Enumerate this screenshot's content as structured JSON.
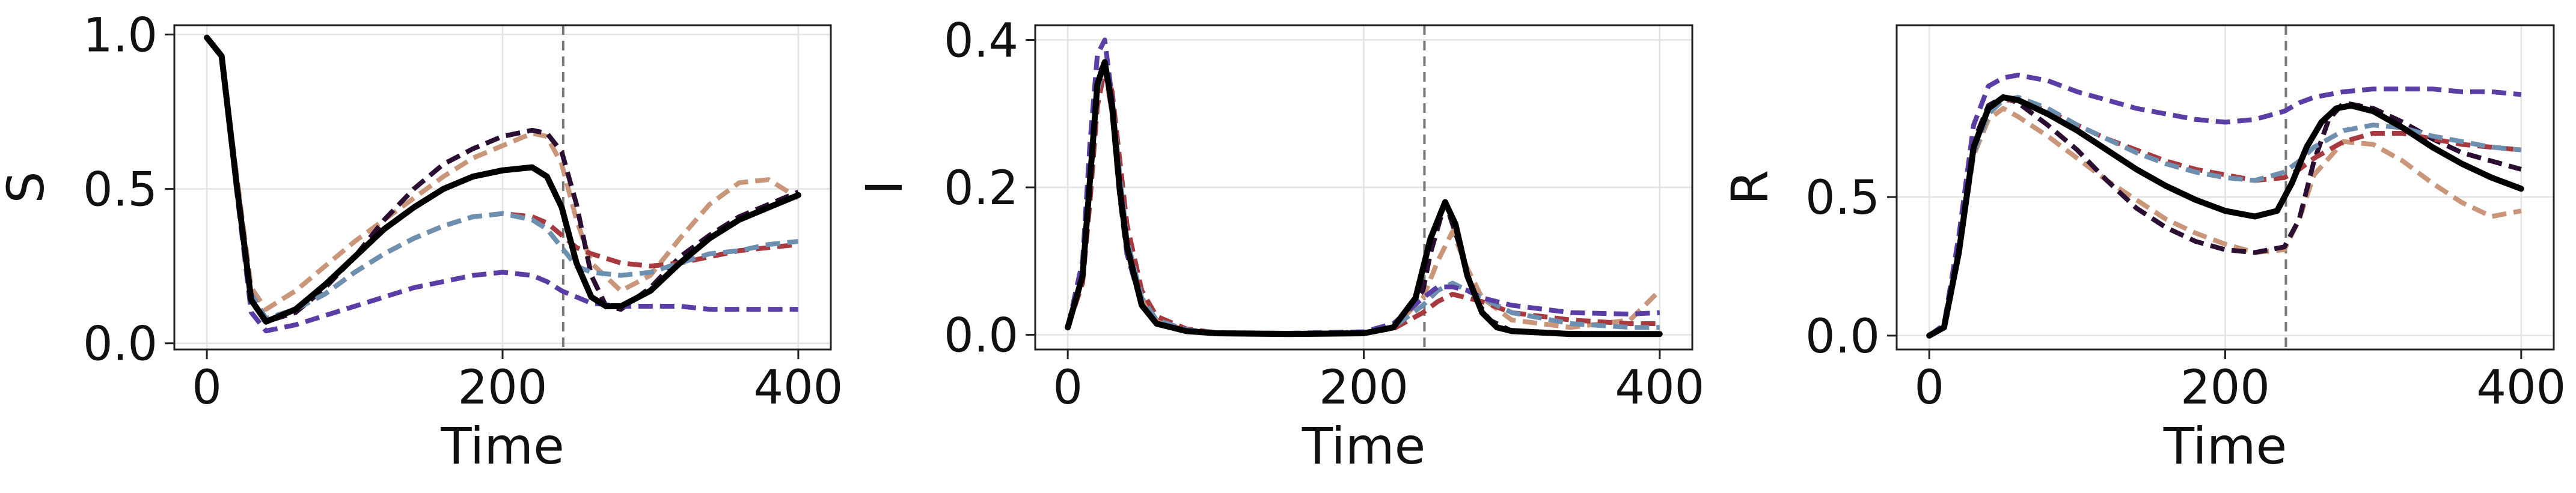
{
  "chart_data": [
    {
      "type": "line",
      "xlabel": "Time",
      "ylabel": "S",
      "xlim": [
        -22,
        422
      ],
      "ylim": [
        -0.02,
        1.03
      ],
      "xticks": [
        0,
        200,
        400
      ],
      "yticks": [
        0.0,
        0.5,
        1.0
      ],
      "ytick_labels": [
        "0.0",
        "0.5",
        "1.0"
      ],
      "vline_x": 241,
      "grid": true,
      "series": [
        {
          "color": "#c9967a",
          "dashed": true,
          "x": [
            0,
            10,
            20,
            30,
            40,
            60,
            80,
            100,
            120,
            140,
            160,
            180,
            200,
            220,
            230,
            240,
            250,
            260,
            280,
            300,
            320,
            340,
            360,
            380,
            400
          ],
          "y": [
            0.99,
            0.93,
            0.55,
            0.18,
            0.11,
            0.17,
            0.25,
            0.33,
            0.4,
            0.47,
            0.54,
            0.6,
            0.64,
            0.68,
            0.67,
            0.58,
            0.4,
            0.26,
            0.17,
            0.22,
            0.34,
            0.45,
            0.52,
            0.53,
            0.47
          ]
        },
        {
          "color": "#2a0f33",
          "dashed": true,
          "x": [
            0,
            10,
            20,
            30,
            40,
            60,
            80,
            100,
            120,
            140,
            160,
            180,
            200,
            220,
            230,
            240,
            250,
            260,
            270,
            280,
            300,
            320,
            340,
            360,
            380,
            400
          ],
          "y": [
            0.99,
            0.93,
            0.52,
            0.14,
            0.07,
            0.1,
            0.18,
            0.28,
            0.4,
            0.5,
            0.58,
            0.63,
            0.67,
            0.69,
            0.68,
            0.62,
            0.45,
            0.22,
            0.12,
            0.11,
            0.18,
            0.28,
            0.35,
            0.41,
            0.45,
            0.49
          ]
        },
        {
          "color": "#a83a3f",
          "dashed": true,
          "x": [
            0,
            10,
            20,
            30,
            40,
            60,
            80,
            100,
            120,
            140,
            160,
            180,
            200,
            220,
            230,
            240,
            250,
            260,
            280,
            300,
            320,
            340,
            360,
            380,
            400
          ],
          "y": [
            0.99,
            0.93,
            0.53,
            0.16,
            0.08,
            0.11,
            0.16,
            0.23,
            0.29,
            0.34,
            0.38,
            0.41,
            0.42,
            0.41,
            0.39,
            0.35,
            0.31,
            0.29,
            0.26,
            0.25,
            0.26,
            0.28,
            0.3,
            0.31,
            0.32
          ]
        },
        {
          "color": "#6d8fb0",
          "dashed": true,
          "x": [
            0,
            10,
            20,
            30,
            40,
            60,
            80,
            100,
            120,
            140,
            160,
            180,
            200,
            220,
            230,
            240,
            250,
            260,
            280,
            300,
            320,
            340,
            360,
            380,
            400
          ],
          "y": [
            0.99,
            0.93,
            0.53,
            0.16,
            0.08,
            0.11,
            0.16,
            0.23,
            0.29,
            0.34,
            0.38,
            0.41,
            0.42,
            0.4,
            0.37,
            0.31,
            0.25,
            0.23,
            0.22,
            0.23,
            0.26,
            0.29,
            0.3,
            0.32,
            0.33
          ]
        },
        {
          "color": "#5a3ea6",
          "dashed": true,
          "x": [
            0,
            10,
            20,
            30,
            40,
            60,
            80,
            100,
            120,
            140,
            160,
            180,
            200,
            220,
            230,
            240,
            250,
            260,
            280,
            300,
            320,
            340,
            360,
            380,
            400
          ],
          "y": [
            0.99,
            0.93,
            0.5,
            0.1,
            0.04,
            0.06,
            0.09,
            0.12,
            0.15,
            0.18,
            0.2,
            0.22,
            0.23,
            0.22,
            0.2,
            0.17,
            0.15,
            0.13,
            0.12,
            0.12,
            0.12,
            0.11,
            0.11,
            0.11,
            0.11
          ]
        },
        {
          "color": "#000000",
          "dashed": false,
          "x": [
            0,
            10,
            20,
            30,
            40,
            60,
            80,
            100,
            120,
            140,
            160,
            180,
            200,
            220,
            230,
            240,
            250,
            260,
            270,
            280,
            300,
            320,
            340,
            360,
            380,
            400
          ],
          "y": [
            0.99,
            0.93,
            0.52,
            0.14,
            0.07,
            0.11,
            0.19,
            0.28,
            0.37,
            0.44,
            0.5,
            0.54,
            0.56,
            0.57,
            0.54,
            0.44,
            0.26,
            0.15,
            0.12,
            0.12,
            0.17,
            0.26,
            0.34,
            0.4,
            0.44,
            0.48
          ]
        }
      ]
    },
    {
      "type": "line",
      "xlabel": "Time",
      "ylabel": "I",
      "xlim": [
        -22,
        422
      ],
      "ylim": [
        -0.02,
        0.42
      ],
      "xticks": [
        0,
        200,
        400
      ],
      "yticks": [
        0.0,
        0.2,
        0.4
      ],
      "ytick_labels": [
        "0.0",
        "0.2",
        "0.4"
      ],
      "vline_x": 241,
      "grid": true,
      "series": [
        {
          "color": "#c9967a",
          "dashed": true,
          "x": [
            0,
            10,
            15,
            20,
            25,
            30,
            35,
            40,
            50,
            60,
            80,
            100,
            150,
            200,
            220,
            240,
            250,
            260,
            270,
            280,
            300,
            340,
            380,
            400
          ],
          "y": [
            0.01,
            0.08,
            0.2,
            0.33,
            0.36,
            0.3,
            0.2,
            0.12,
            0.05,
            0.02,
            0.006,
            0.003,
            0.002,
            0.003,
            0.01,
            0.05,
            0.1,
            0.14,
            0.09,
            0.05,
            0.02,
            0.01,
            0.02,
            0.06
          ]
        },
        {
          "color": "#2a0f33",
          "dashed": true,
          "x": [
            0,
            10,
            15,
            20,
            25,
            30,
            35,
            40,
            50,
            60,
            80,
            100,
            150,
            200,
            220,
            240,
            245,
            255,
            265,
            275,
            285,
            300,
            340,
            380,
            400
          ],
          "y": [
            0.01,
            0.09,
            0.23,
            0.35,
            0.37,
            0.3,
            0.19,
            0.11,
            0.04,
            0.015,
            0.005,
            0.002,
            0.001,
            0.002,
            0.01,
            0.06,
            0.11,
            0.18,
            0.12,
            0.05,
            0.02,
            0.005,
            0.002,
            0.001,
            0.001
          ]
        },
        {
          "color": "#a83a3f",
          "dashed": true,
          "x": [
            0,
            10,
            15,
            20,
            25,
            30,
            35,
            40,
            50,
            60,
            80,
            100,
            150,
            200,
            220,
            240,
            250,
            260,
            270,
            280,
            300,
            340,
            380,
            400
          ],
          "y": [
            0.01,
            0.07,
            0.18,
            0.31,
            0.36,
            0.33,
            0.24,
            0.15,
            0.06,
            0.025,
            0.008,
            0.003,
            0.002,
            0.003,
            0.008,
            0.03,
            0.045,
            0.055,
            0.05,
            0.045,
            0.03,
            0.02,
            0.015,
            0.015
          ]
        },
        {
          "color": "#6d8fb0",
          "dashed": true,
          "x": [
            0,
            10,
            15,
            20,
            25,
            30,
            35,
            40,
            50,
            60,
            80,
            100,
            150,
            200,
            220,
            240,
            250,
            260,
            270,
            280,
            300,
            340,
            380,
            400
          ],
          "y": [
            0.01,
            0.08,
            0.2,
            0.33,
            0.37,
            0.32,
            0.22,
            0.13,
            0.05,
            0.02,
            0.007,
            0.003,
            0.002,
            0.003,
            0.01,
            0.04,
            0.06,
            0.07,
            0.06,
            0.05,
            0.03,
            0.015,
            0.01,
            0.01
          ]
        },
        {
          "color": "#5a3ea6",
          "dashed": true,
          "x": [
            0,
            10,
            15,
            20,
            25,
            30,
            35,
            40,
            50,
            60,
            80,
            100,
            150,
            200,
            220,
            240,
            250,
            260,
            270,
            280,
            300,
            340,
            380,
            400
          ],
          "y": [
            0.01,
            0.1,
            0.26,
            0.38,
            0.4,
            0.32,
            0.2,
            0.11,
            0.04,
            0.015,
            0.005,
            0.002,
            0.002,
            0.004,
            0.015,
            0.05,
            0.065,
            0.065,
            0.06,
            0.05,
            0.04,
            0.03,
            0.028,
            0.03
          ]
        },
        {
          "color": "#000000",
          "dashed": false,
          "x": [
            0,
            10,
            15,
            20,
            25,
            30,
            35,
            40,
            50,
            60,
            80,
            100,
            150,
            200,
            220,
            235,
            245,
            255,
            262,
            270,
            280,
            290,
            300,
            340,
            380,
            400
          ],
          "y": [
            0.01,
            0.08,
            0.21,
            0.34,
            0.37,
            0.31,
            0.2,
            0.12,
            0.04,
            0.015,
            0.005,
            0.002,
            0.001,
            0.002,
            0.01,
            0.05,
            0.13,
            0.18,
            0.15,
            0.08,
            0.03,
            0.01,
            0.005,
            0.001,
            0.001,
            0.001
          ]
        }
      ]
    },
    {
      "type": "line",
      "xlabel": "Time",
      "ylabel": "R",
      "xlim": [
        -22,
        422
      ],
      "ylim": [
        -0.05,
        1.12
      ],
      "xticks": [
        0,
        200,
        400
      ],
      "yticks": [
        0.0,
        0.5
      ],
      "ytick_labels": [
        "0.0",
        "0.5"
      ],
      "vline_x": 241,
      "grid": true,
      "series": [
        {
          "color": "#c9967a",
          "dashed": true,
          "x": [
            0,
            10,
            20,
            30,
            40,
            50,
            60,
            80,
            100,
            120,
            140,
            160,
            180,
            200,
            220,
            240,
            250,
            260,
            280,
            300,
            320,
            340,
            360,
            380,
            400
          ],
          "y": [
            0.0,
            0.03,
            0.3,
            0.65,
            0.78,
            0.82,
            0.79,
            0.72,
            0.64,
            0.56,
            0.49,
            0.42,
            0.37,
            0.33,
            0.3,
            0.31,
            0.42,
            0.58,
            0.7,
            0.69,
            0.63,
            0.55,
            0.48,
            0.43,
            0.45
          ]
        },
        {
          "color": "#2a0f33",
          "dashed": true,
          "x": [
            0,
            10,
            20,
            30,
            40,
            50,
            60,
            80,
            100,
            120,
            140,
            160,
            180,
            200,
            220,
            240,
            250,
            260,
            270,
            280,
            300,
            320,
            340,
            360,
            380,
            400
          ],
          "y": [
            0.0,
            0.03,
            0.32,
            0.7,
            0.83,
            0.86,
            0.84,
            0.76,
            0.67,
            0.56,
            0.46,
            0.39,
            0.34,
            0.31,
            0.3,
            0.32,
            0.42,
            0.63,
            0.78,
            0.84,
            0.82,
            0.77,
            0.71,
            0.66,
            0.63,
            0.6
          ]
        },
        {
          "color": "#a83a3f",
          "dashed": true,
          "x": [
            0,
            10,
            20,
            30,
            40,
            50,
            60,
            80,
            100,
            120,
            140,
            160,
            180,
            200,
            220,
            240,
            250,
            260,
            280,
            300,
            320,
            340,
            360,
            380,
            400
          ],
          "y": [
            0.0,
            0.03,
            0.3,
            0.66,
            0.8,
            0.85,
            0.85,
            0.81,
            0.76,
            0.71,
            0.67,
            0.63,
            0.6,
            0.58,
            0.56,
            0.57,
            0.6,
            0.64,
            0.7,
            0.73,
            0.73,
            0.71,
            0.69,
            0.68,
            0.67
          ]
        },
        {
          "color": "#6d8fb0",
          "dashed": true,
          "x": [
            0,
            10,
            20,
            30,
            40,
            50,
            60,
            80,
            100,
            120,
            140,
            160,
            180,
            200,
            220,
            240,
            250,
            260,
            280,
            300,
            320,
            340,
            360,
            380,
            400
          ],
          "y": [
            0.0,
            0.03,
            0.3,
            0.66,
            0.8,
            0.85,
            0.86,
            0.82,
            0.76,
            0.71,
            0.66,
            0.62,
            0.59,
            0.57,
            0.56,
            0.59,
            0.63,
            0.68,
            0.74,
            0.76,
            0.75,
            0.72,
            0.7,
            0.68,
            0.67
          ]
        },
        {
          "color": "#5a3ea6",
          "dashed": true,
          "x": [
            0,
            10,
            20,
            30,
            40,
            50,
            60,
            80,
            100,
            120,
            140,
            160,
            180,
            200,
            220,
            240,
            250,
            260,
            280,
            300,
            320,
            340,
            360,
            380,
            400
          ],
          "y": [
            0.0,
            0.04,
            0.36,
            0.76,
            0.9,
            0.93,
            0.94,
            0.92,
            0.88,
            0.85,
            0.82,
            0.8,
            0.78,
            0.77,
            0.78,
            0.81,
            0.84,
            0.86,
            0.88,
            0.89,
            0.89,
            0.89,
            0.88,
            0.88,
            0.87
          ]
        },
        {
          "color": "#000000",
          "dashed": false,
          "x": [
            0,
            10,
            20,
            30,
            40,
            50,
            60,
            80,
            100,
            120,
            140,
            160,
            180,
            200,
            220,
            235,
            245,
            255,
            265,
            275,
            285,
            300,
            320,
            340,
            360,
            380,
            400
          ],
          "y": [
            0.0,
            0.03,
            0.3,
            0.68,
            0.82,
            0.86,
            0.85,
            0.8,
            0.74,
            0.67,
            0.6,
            0.54,
            0.49,
            0.45,
            0.43,
            0.45,
            0.55,
            0.68,
            0.77,
            0.82,
            0.83,
            0.81,
            0.75,
            0.68,
            0.62,
            0.57,
            0.53
          ]
        }
      ]
    }
  ]
}
